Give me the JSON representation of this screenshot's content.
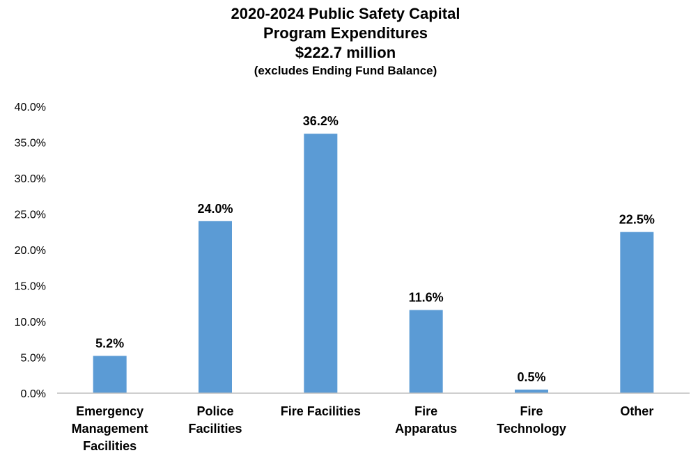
{
  "chart_data": {
    "type": "bar",
    "title_lines": [
      "2020-2024 Public Safety Capital",
      "Program Expenditures",
      "$222.7 million"
    ],
    "subtitle": "(excludes Ending Fund Balance)",
    "categories": [
      [
        "Emergency",
        "Management",
        "Facilities"
      ],
      [
        "Police",
        "Facilities"
      ],
      [
        "Fire Facilities"
      ],
      [
        "Fire",
        "Apparatus"
      ],
      [
        "Fire",
        "Technology"
      ],
      [
        "Other"
      ]
    ],
    "values": [
      5.2,
      24.0,
      36.2,
      11.6,
      0.5,
      22.5
    ],
    "data_labels": [
      "5.2%",
      "24.0%",
      "36.2%",
      "11.6%",
      "0.5%",
      "22.5%"
    ],
    "ylim": [
      0,
      40
    ],
    "yticks": [
      "0.0%",
      "5.0%",
      "10.0%",
      "15.0%",
      "20.0%",
      "25.0%",
      "30.0%",
      "35.0%",
      "40.0%"
    ],
    "grid": false,
    "legend": "none",
    "bar_color": "#5B9BD5",
    "axis_color": "#BFBFBF"
  }
}
